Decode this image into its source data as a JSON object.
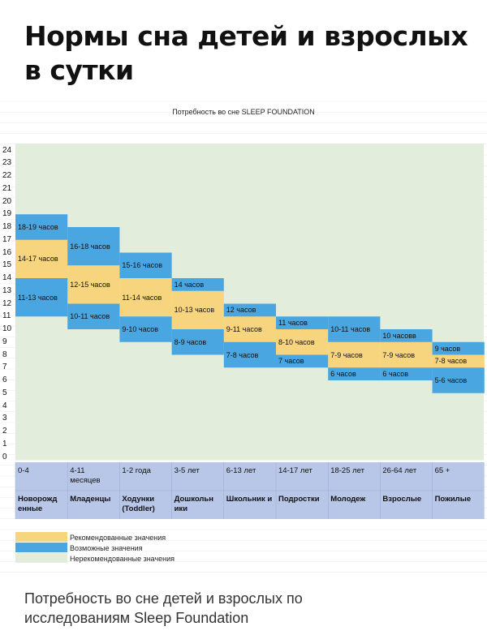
{
  "page": {
    "title_line1": "Нормы сна детей и взрослых",
    "title_line2": "в сутки",
    "caption_line1": "Потребность во сне детей и взрослых по",
    "caption_line2": "исследованиям Sleep Foundation"
  },
  "chart_data": {
    "type": "bar",
    "title": "Потребность во сне SLEEP FOUNDATION",
    "ylim": [
      0,
      24
    ],
    "y_ticks": [
      "0",
      "1",
      "2",
      "3",
      "4",
      "5",
      "6",
      "7",
      "8",
      "9",
      "10",
      "11",
      "12",
      "13",
      "14",
      "15",
      "16",
      "17",
      "18",
      "19",
      "20",
      "21",
      "22",
      "23",
      "24"
    ],
    "grid": true,
    "categories": [
      {
        "age": "0-4",
        "name": "Новорожд енные"
      },
      {
        "age": "4-11 месяцев",
        "name": "Младенцы"
      },
      {
        "age": "1-2 года",
        "name": "Ходунки (Toddler)"
      },
      {
        "age": "3-5 лет",
        "name": "Дошкольн ики"
      },
      {
        "age": "6-13 лет",
        "name": "Школьник и"
      },
      {
        "age": "14-17 лет",
        "name": "Подростки"
      },
      {
        "age": "18-25 лет",
        "name": "Молодеж"
      },
      {
        "age": "26-64 лет",
        "name": "Взрослые"
      },
      {
        "age": "65 +",
        "name": "Пожилые"
      }
    ],
    "series": [
      {
        "name": "Рекомендованные значения",
        "color": "#f7d57e",
        "ranges": [
          [
            14,
            17
          ],
          [
            12,
            15
          ],
          [
            11,
            14
          ],
          [
            10,
            13
          ],
          [
            9,
            11
          ],
          [
            8,
            10
          ],
          [
            7,
            9
          ],
          [
            7,
            9
          ],
          [
            7,
            8
          ]
        ],
        "labels": [
          "14-17 часов",
          "12-15 часов",
          "11-14 часов",
          "10-13 часов",
          "9-11 часов",
          "8-10 часов",
          "7-9 часов",
          "7-9 часов",
          "7-8 часов"
        ]
      },
      {
        "name": "Возможные значения (верх)",
        "color": "#4aa6e0",
        "ranges": [
          [
            17,
            19
          ],
          [
            15,
            18
          ],
          [
            14,
            16
          ],
          [
            13,
            14
          ],
          [
            11,
            12
          ],
          [
            10,
            11
          ],
          [
            9,
            11
          ],
          [
            9,
            10
          ],
          [
            8,
            9
          ]
        ],
        "labels": [
          "18-19 часов",
          "16-18 часов",
          "15-16 часов",
          "14 часов",
          "12 часов",
          "11 часов",
          "10-11 часов",
          "10 часовв",
          "9 часов"
        ]
      },
      {
        "name": "Возможные значения (низ)",
        "color": "#4aa6e0",
        "ranges": [
          [
            11,
            14
          ],
          [
            10,
            12
          ],
          [
            9,
            11
          ],
          [
            8,
            10
          ],
          [
            7,
            9
          ],
          [
            7,
            8
          ],
          [
            6,
            7
          ],
          [
            6,
            7
          ],
          [
            5,
            7
          ]
        ],
        "labels": [
          "11-13 часов",
          "10-11 часов",
          "9-10 часов",
          "8-9 часов",
          "7-8 часов",
          "7 часов",
          "6 часов",
          "6 часов",
          "5-6 часов"
        ]
      }
    ],
    "legend": [
      {
        "label": "Рекомендованные значения",
        "color": "#f7d57e"
      },
      {
        "label": "Возможные значения",
        "color": "#4aa6e0"
      },
      {
        "label": "Нерекомендованные значения",
        "color": "#e2eedb"
      }
    ],
    "background_color": "#e2eedb",
    "category_band_color": "#b8c7e8"
  }
}
